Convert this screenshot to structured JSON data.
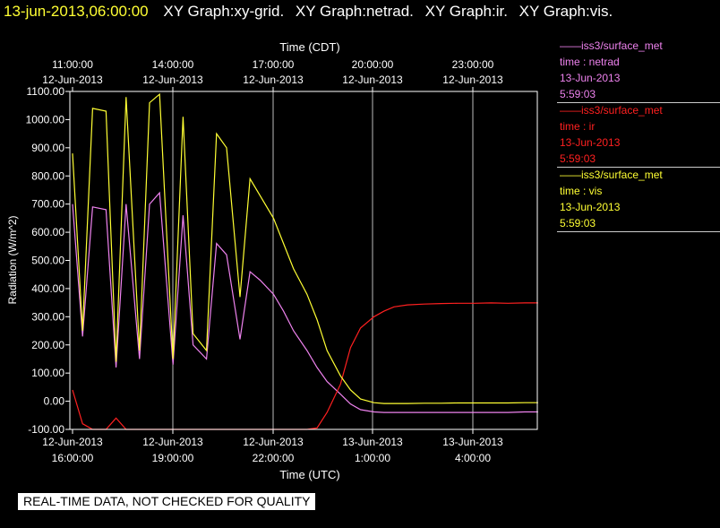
{
  "header": {
    "timestamp": "13-jun-2013,06:00:00",
    "graphs": [
      "XY Graph:xy-grid.",
      "XY Graph:netrad.",
      "XY Graph:ir.",
      "XY Graph:vis."
    ]
  },
  "footer": {
    "quality_note": "REAL-TIME DATA, NOT CHECKED FOR QUALITY"
  },
  "chart_data": {
    "type": "line",
    "ylabel": "Radiation (W/m^2)",
    "top_axis_label": "Time (CDT)",
    "xlabel": "Time (UTC)",
    "ylim": [
      -100,
      1100
    ],
    "grid": true,
    "yticks": [
      "1100.00",
      "1000.00",
      "900.00",
      "800.00",
      "700.00",
      "600.00",
      "500.00",
      "400.00",
      "300.00",
      "200.00",
      "100.00",
      "0.00",
      "-100.00"
    ],
    "top_ticks": [
      {
        "time": "11:00:00",
        "date": "12-Jun-2013"
      },
      {
        "time": "14:00:00",
        "date": "12-Jun-2013"
      },
      {
        "time": "17:00:00",
        "date": "12-Jun-2013"
      },
      {
        "time": "20:00:00",
        "date": "12-Jun-2013"
      },
      {
        "time": "23:00:00",
        "date": "12-Jun-2013"
      }
    ],
    "bottom_ticks": [
      {
        "date": "12-Jun-2013",
        "time": "16:00:00"
      },
      {
        "date": "12-Jun-2013",
        "time": "19:00:00"
      },
      {
        "date": "12-Jun-2013",
        "time": "22:00:00"
      },
      {
        "date": "13-Jun-2013",
        "time": "1:00:00"
      },
      {
        "date": "13-Jun-2013",
        "time": "4:00:00"
      }
    ],
    "x_hours_utc_since_start": [
      0,
      0.3,
      0.6,
      1.0,
      1.3,
      1.6,
      2.0,
      2.3,
      2.6,
      3.0,
      3.3,
      3.6,
      4.0,
      4.3,
      4.6,
      5.0,
      5.3,
      5.6,
      6.0,
      6.3,
      6.6,
      7.0,
      7.3,
      7.6,
      8.0,
      8.3,
      8.6,
      9.0,
      9.3,
      9.6,
      10.0,
      10.5,
      11.0,
      11.5,
      12.0,
      12.5,
      13.0,
      13.5,
      13.9
    ],
    "series": [
      {
        "name": "netrad",
        "color": "#ee82ee",
        "values": [
          700,
          230,
          690,
          680,
          120,
          700,
          150,
          700,
          740,
          130,
          660,
          200,
          150,
          560,
          520,
          220,
          460,
          430,
          380,
          320,
          250,
          180,
          120,
          70,
          25,
          -10,
          -30,
          -38,
          -40,
          -40,
          -40,
          -40,
          -40,
          -40,
          -40,
          -40,
          -40,
          -38,
          -38
        ]
      },
      {
        "name": "ir",
        "color": "#ff2020",
        "values": [
          40,
          -80,
          -100,
          -100,
          -60,
          -100,
          -100,
          -100,
          -100,
          -100,
          -100,
          -100,
          -100,
          -100,
          -100,
          -100,
          -100,
          -100,
          -100,
          -100,
          -100,
          -100,
          -95,
          -40,
          60,
          190,
          260,
          300,
          320,
          335,
          342,
          345,
          347,
          348,
          348,
          349,
          348,
          349,
          349
        ]
      },
      {
        "name": "vis",
        "color": "#ffff33",
        "values": [
          880,
          250,
          1040,
          1030,
          140,
          1080,
          180,
          1060,
          1090,
          150,
          1010,
          240,
          180,
          950,
          900,
          370,
          790,
          730,
          650,
          560,
          470,
          380,
          290,
          180,
          90,
          40,
          8,
          -5,
          -8,
          -8,
          -8,
          -7,
          -7,
          -6,
          -6,
          -6,
          -6,
          -5,
          -5
        ]
      }
    ],
    "legend": [
      {
        "title": "iss3/surface_met",
        "line2": "time : netrad",
        "line3": "13-Jun-2013",
        "line4": "5:59:03",
        "color": "#ee82ee"
      },
      {
        "title": "iss3/surface_met",
        "line2": "time : ir",
        "line3": "13-Jun-2013",
        "line4": "5:59:03",
        "color": "#ff2020"
      },
      {
        "title": "iss3/surface_met",
        "line2": "time : vis",
        "line3": "13-Jun-2013",
        "line4": "5:59:03",
        "color": "#ffff33"
      }
    ]
  }
}
